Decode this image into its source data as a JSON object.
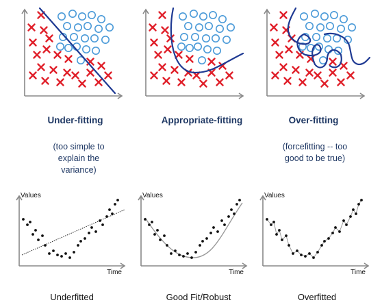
{
  "top_row": [
    {
      "heading": "Under-fitting",
      "note_lines": [
        "(too simple to",
        "explain the",
        "variance)"
      ],
      "boundary": "linear"
    },
    {
      "heading": "Appropriate-fitting",
      "note_lines": [],
      "boundary": "smooth-curve"
    },
    {
      "heading": "Over-fitting",
      "note_lines": [
        "(forcefitting -- too",
        "good to be true)"
      ],
      "boundary": "wiggly-loops"
    }
  ],
  "bottom_row": [
    {
      "caption": "Underfitted",
      "y_axis_label": "Values",
      "x_axis_label": "Time",
      "fit": "straight-line"
    },
    {
      "caption": "Good Fit/Robust",
      "y_axis_label": "Values",
      "x_axis_label": "Time",
      "fit": "smooth-curve"
    },
    {
      "caption": "Overfitted",
      "y_axis_label": "Values",
      "x_axis_label": "Time",
      "fit": "through-every-point"
    }
  ],
  "colors": {
    "cross": "#e0202a",
    "circle": "#4a9ad8",
    "boundary": "#1f3a93",
    "heading": "#1f3864",
    "axis": "#888888",
    "points": "#111111"
  },
  "icons": {
    "class_a_marker": "red-cross-icon",
    "class_b_marker": "blue-circle-icon"
  }
}
